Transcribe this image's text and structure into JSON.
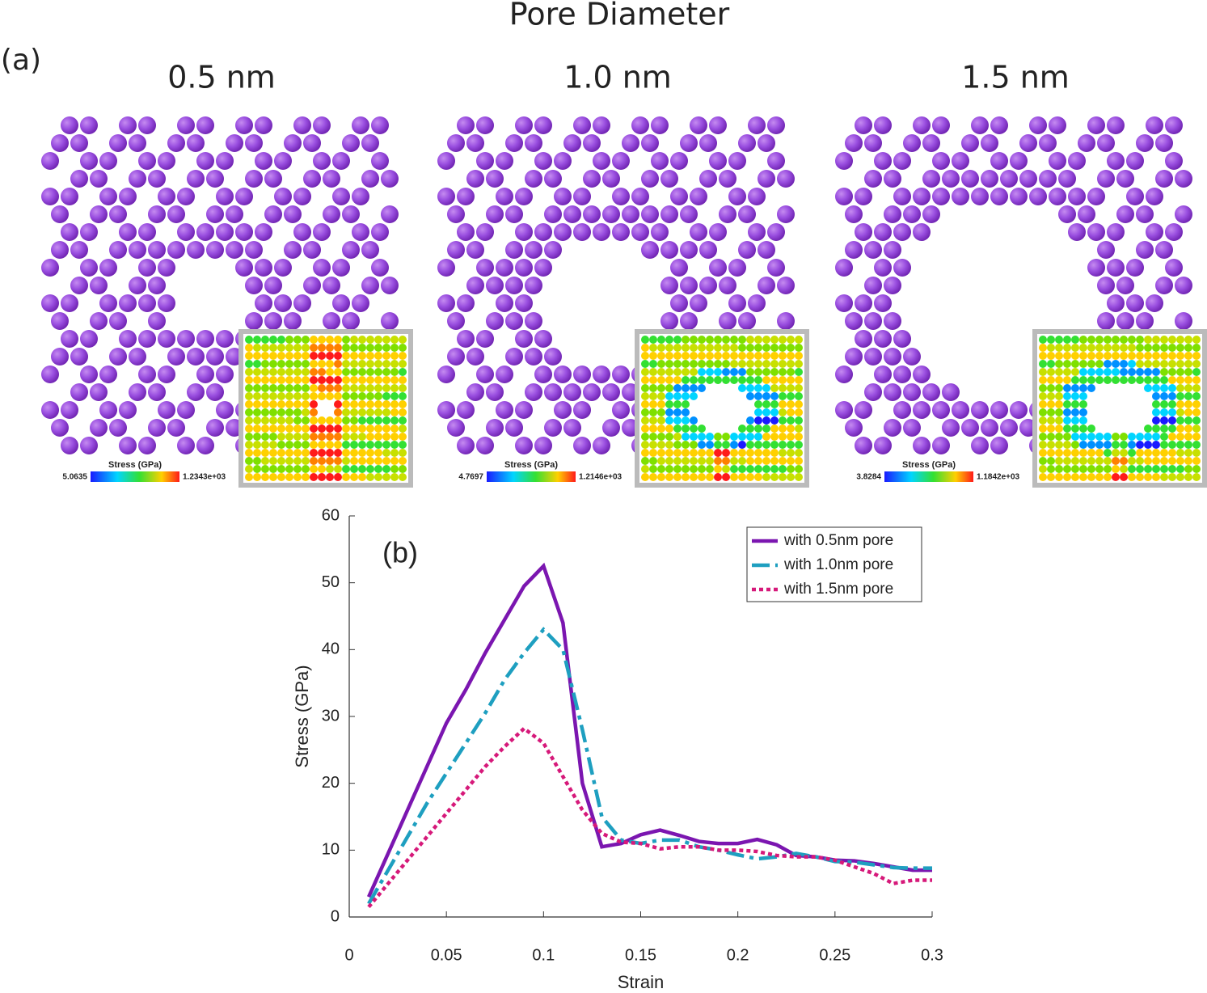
{
  "figure": {
    "title": "Pore Diameter",
    "label": "(a)",
    "panels": [
      {
        "label": "0.5 nm",
        "colorbar": {
          "title": "Stress (GPa)",
          "min": "5.0635",
          "max": "1.2343e+03"
        }
      },
      {
        "label": "1.0 nm",
        "colorbar": {
          "title": "Stress (GPa)",
          "min": "4.7697",
          "max": "1.2146e+03"
        }
      },
      {
        "label": "1.5 nm",
        "colorbar": {
          "title": "Stress (GPa)",
          "min": "3.8284",
          "max": "1.1842e+03"
        }
      }
    ]
  },
  "chart_data": {
    "type": "line",
    "annotation": "(b)",
    "xlabel": "Strain",
    "ylabel": "Stress (GPa)",
    "x": [
      0.01,
      0.02,
      0.03,
      0.04,
      0.05,
      0.06,
      0.07,
      0.08,
      0.09,
      0.1,
      0.11,
      0.12,
      0.13,
      0.14,
      0.15,
      0.16,
      0.17,
      0.18,
      0.19,
      0.2,
      0.21,
      0.22,
      0.23,
      0.24,
      0.25,
      0.26,
      0.27,
      0.28,
      0.29,
      0.3
    ],
    "series": [
      {
        "name": "with 0.5nm pore",
        "color": "#7b16b0",
        "style": "solid",
        "values": [
          3,
          9.5,
          16,
          22.5,
          29,
          34,
          39.5,
          44.5,
          49.5,
          52.5,
          44,
          20,
          10.5,
          11,
          12.3,
          13,
          12.2,
          11.3,
          11,
          11,
          11.6,
          10.8,
          9.2,
          9,
          8.5,
          8.4,
          8,
          7.5,
          7,
          7
        ]
      },
      {
        "name": "with 1.0nm pore",
        "color": "#1e9fc0",
        "style": "dashdot",
        "values": [
          2,
          7,
          12,
          17,
          21.5,
          26,
          30.5,
          35.5,
          39.5,
          43,
          40,
          28,
          15,
          11.5,
          11,
          11.5,
          11.5,
          10.5,
          10,
          9.3,
          8.7,
          9,
          9.5,
          9,
          8.3,
          8.2,
          7.8,
          7.4,
          7.3,
          7.3
        ]
      },
      {
        "name": "with 1.5nm pore",
        "color": "#d6197a",
        "style": "dotted",
        "values": [
          1.5,
          5,
          8.5,
          12,
          15.5,
          19,
          22.5,
          25.5,
          28.2,
          26,
          21,
          16,
          12.5,
          11.2,
          11,
          10.2,
          10.5,
          10.5,
          10,
          10,
          9.8,
          9.2,
          9,
          9,
          8.5,
          7.5,
          6.5,
          5,
          5.5,
          5.5
        ]
      }
    ],
    "xlim": [
      0,
      0.3
    ],
    "xticks": [
      0,
      0.05,
      0.1,
      0.15,
      0.2,
      0.25,
      0.3
    ],
    "ylim": [
      0,
      60
    ],
    "yticks": [
      0,
      10,
      20,
      30,
      40,
      50,
      60
    ],
    "grid": false,
    "legend": "top-right"
  }
}
